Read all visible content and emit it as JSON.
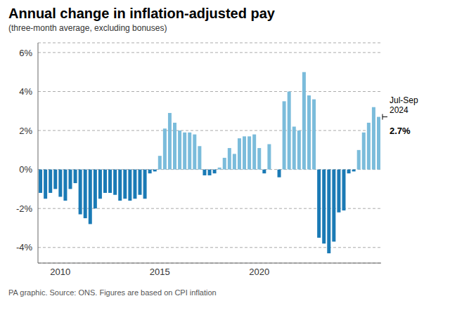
{
  "chart_data": {
    "type": "bar",
    "title": "Annual change in inflation-adjusted pay",
    "subtitle": "(three-month average, excluding bonuses)",
    "source": "PA graphic. Source: ONS. Figures are based on CPI inflation",
    "categories": [
      null,
      null,
      null,
      null,
      "2010",
      null,
      null,
      null,
      null,
      null,
      null,
      null,
      null,
      null,
      null,
      null,
      null,
      null,
      null,
      null,
      null,
      null,
      null,
      null,
      "2015",
      null,
      null,
      null,
      null,
      null,
      null,
      null,
      null,
      null,
      null,
      null,
      null,
      null,
      null,
      null,
      null,
      null,
      null,
      null,
      "2020",
      null,
      null,
      null,
      null,
      null,
      null,
      null,
      null,
      null,
      null,
      null,
      null,
      null,
      null,
      null,
      null,
      null,
      null,
      null,
      null,
      null,
      null,
      null,
      null
    ],
    "values": [
      -1.2,
      -1.5,
      -1.2,
      -1.0,
      -1.4,
      -1.6,
      -1.0,
      -0.7,
      -2.3,
      -2.5,
      -2.8,
      -2.0,
      -1.5,
      -1.2,
      -1.2,
      -1.3,
      -1.6,
      -1.5,
      -1.6,
      -1.5,
      -1.3,
      -1.5,
      -0.2,
      -0.1,
      0.7,
      2.1,
      2.9,
      2.4,
      2.0,
      1.9,
      1.9,
      1.8,
      1.2,
      -0.3,
      -0.3,
      -0.2,
      0.1,
      0.6,
      1.1,
      0.8,
      1.6,
      1.7,
      1.7,
      1.8,
      1.1,
      -0.2,
      1.3,
      0.0,
      -0.4,
      3.5,
      4.0,
      2.2,
      2.0,
      5.0,
      3.8,
      3.6,
      -3.5,
      -3.8,
      -4.3,
      -3.7,
      -2.2,
      -2.1,
      -0.2,
      -0.1,
      1.0,
      1.9,
      2.4,
      3.2,
      2.7
    ],
    "colors": [
      "#1a7ab5",
      "#1a7ab5",
      "#1a7ab5",
      "#1a7ab5",
      "#1a7ab5",
      "#1a7ab5",
      "#1a7ab5",
      "#1a7ab5",
      "#1a7ab5",
      "#1a7ab5",
      "#1a7ab5",
      "#1a7ab5",
      "#1a7ab5",
      "#1a7ab5",
      "#1a7ab5",
      "#1a7ab5",
      "#1a7ab5",
      "#1a7ab5",
      "#1a7ab5",
      "#1a7ab5",
      "#1a7ab5",
      "#1a7ab5",
      "#1a7ab5",
      "#1a7ab5",
      "#7bbcdb",
      "#7bbcdb",
      "#7bbcdb",
      "#7bbcdb",
      "#7bbcdb",
      "#7bbcdb",
      "#7bbcdb",
      "#7bbcdb",
      "#7bbcdb",
      "#1a7ab5",
      "#1a7ab5",
      "#1a7ab5",
      "#7bbcdb",
      "#7bbcdb",
      "#7bbcdb",
      "#7bbcdb",
      "#7bbcdb",
      "#7bbcdb",
      "#7bbcdb",
      "#7bbcdb",
      "#7bbcdb",
      "#1a7ab5",
      "#7bbcdb",
      "#7bbcdb",
      "#1a7ab5",
      "#7bbcdb",
      "#7bbcdb",
      "#7bbcdb",
      "#7bbcdb",
      "#7bbcdb",
      "#7bbcdb",
      "#7bbcdb",
      "#1a7ab5",
      "#1a7ab5",
      "#1a7ab5",
      "#1a7ab5",
      "#1a7ab5",
      "#1a7ab5",
      "#1a7ab5",
      "#1a7ab5",
      "#7bbcdb",
      "#7bbcdb",
      "#7bbcdb",
      "#7bbcdb",
      "#7bbcdb"
    ],
    "ylim": [
      -4.8,
      6.5
    ],
    "yticks": [
      {
        "value": -4,
        "label": "-4%"
      },
      {
        "value": -2,
        "label": "-2%"
      },
      {
        "value": 0,
        "label": "0%"
      },
      {
        "value": 2,
        "label": "2%"
      },
      {
        "value": 4,
        "label": "4%"
      },
      {
        "value": 6,
        "label": "6%"
      }
    ],
    "grid": true,
    "annotations": [
      "Jul-Sep\n2024",
      "2.7%"
    ]
  }
}
